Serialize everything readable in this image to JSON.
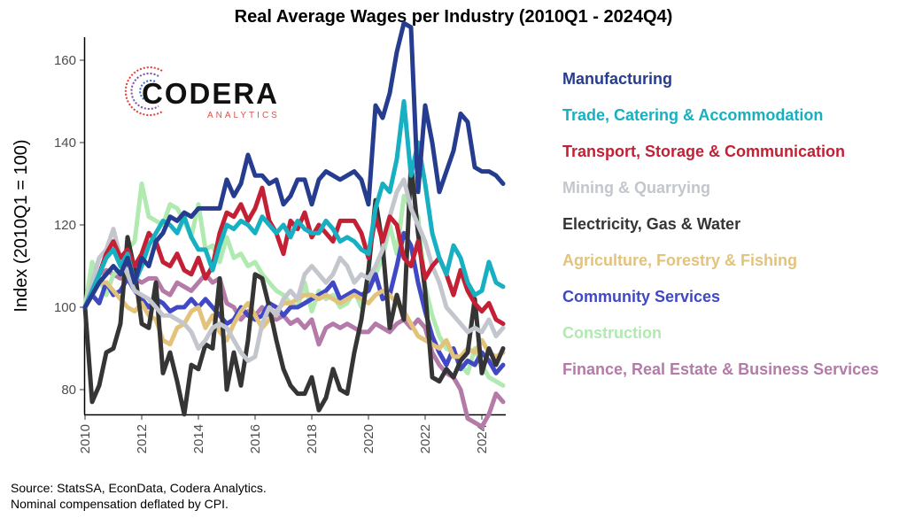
{
  "chart_data": {
    "type": "line",
    "title": "Real Average Wages per Industry (2010Q1 - 2024Q4)",
    "xlabel": "",
    "ylabel": "Index (2010Q1 = 100)",
    "xlim": [
      2010,
      2024.75
    ],
    "ylim": [
      70,
      170
    ],
    "x_ticks": [
      "2010",
      "2012",
      "2014",
      "2016",
      "2018",
      "2020",
      "2022",
      "2024"
    ],
    "y_ticks": [
      "80",
      "100",
      "120",
      "140",
      "160"
    ],
    "grid": false,
    "legend": "right",
    "x": [
      2010,
      2010.25,
      2010.5,
      2010.75,
      2011,
      2011.25,
      2011.5,
      2011.75,
      2012,
      2012.25,
      2012.5,
      2012.75,
      2013,
      2013.25,
      2013.5,
      2013.75,
      2014,
      2014.25,
      2014.5,
      2014.75,
      2015,
      2015.25,
      2015.5,
      2015.75,
      2016,
      2016.25,
      2016.5,
      2016.75,
      2017,
      2017.25,
      2017.5,
      2017.75,
      2018,
      2018.25,
      2018.5,
      2018.75,
      2019,
      2019.25,
      2019.5,
      2019.75,
      2020,
      2020.25,
      2020.5,
      2020.75,
      2021,
      2021.25,
      2021.5,
      2021.75,
      2022,
      2022.25,
      2022.5,
      2022.75,
      2023,
      2023.25,
      2023.5,
      2023.75,
      2024,
      2024.25,
      2024.5,
      2024.75
    ],
    "series": [
      {
        "name": "Manufacturing",
        "color": "#263c8f",
        "values": [
          100,
          103,
          106,
          108,
          110,
          108,
          112,
          106,
          112,
          110,
          116,
          118,
          122,
          121,
          123,
          122,
          124,
          124,
          124,
          124,
          131,
          127,
          130,
          137,
          132,
          132,
          130,
          131,
          125,
          127,
          131,
          131,
          125,
          131,
          133,
          132,
          131,
          132,
          133,
          131,
          125,
          149,
          146,
          152,
          162,
          169,
          168,
          128,
          149,
          140,
          128,
          133,
          138,
          147,
          145,
          134,
          133,
          133,
          132,
          130
        ]
      },
      {
        "name": "Trade, Catering & Accommodation",
        "color": "#17b0c2",
        "values": [
          100,
          104,
          108,
          112,
          114,
          110,
          113,
          106,
          110,
          115,
          118,
          121,
          120,
          118,
          122,
          117,
          114,
          114,
          109,
          115,
          120,
          119,
          121,
          120,
          118,
          122,
          120,
          118,
          120,
          117,
          121,
          119,
          118,
          118,
          121,
          119,
          116,
          117,
          116,
          114,
          113,
          124,
          130,
          128,
          136,
          150,
          132,
          140,
          130,
          118,
          112,
          108,
          115,
          112,
          106,
          103,
          104,
          111,
          106,
          105
        ]
      },
      {
        "name": "Transport, Storage & Communication",
        "color": "#c42035",
        "values": [
          100,
          104,
          108,
          113,
          116,
          112,
          114,
          110,
          113,
          118,
          116,
          111,
          110,
          113,
          109,
          108,
          112,
          107,
          110,
          118,
          123,
          122,
          125,
          121,
          124,
          129,
          121,
          118,
          113,
          121,
          119,
          123,
          117,
          120,
          118,
          116,
          121,
          121,
          121,
          118,
          112,
          122,
          116,
          122,
          120,
          112,
          110,
          116,
          107,
          110,
          112,
          108,
          103,
          109,
          104,
          101,
          99,
          101,
          97,
          96
        ]
      },
      {
        "name": "Mining & Quarrying",
        "color": "#c3c6cd",
        "values": [
          100,
          106,
          112,
          114,
          119,
          112,
          108,
          104,
          103,
          102,
          100,
          98,
          98,
          97,
          96,
          94,
          90,
          92,
          95,
          96,
          95,
          92,
          89,
          87,
          88,
          96,
          100,
          98,
          102,
          104,
          102,
          108,
          110,
          108,
          106,
          108,
          112,
          110,
          106,
          108,
          107,
          110,
          114,
          122,
          128,
          131,
          124,
          120,
          116,
          110,
          106,
          100,
          98,
          96,
          94,
          95,
          94,
          97,
          93,
          95
        ]
      },
      {
        "name": "Electricity, Gas & Water",
        "color": "#353535",
        "values": [
          100,
          77,
          81,
          89,
          90,
          96,
          117,
          109,
          96,
          95,
          106,
          84,
          89,
          82,
          74,
          86,
          85,
          91,
          90,
          107,
          80,
          89,
          81,
          92,
          108,
          107,
          100,
          92,
          85,
          81,
          79,
          79,
          83,
          75,
          78,
          85,
          80,
          79,
          89,
          97,
          109,
          126,
          115,
          95,
          103,
          97,
          135,
          118,
          104,
          83,
          82,
          85,
          83,
          87,
          89,
          102,
          84,
          90,
          86,
          90
        ]
      },
      {
        "name": "Agriculture, Forestry & Fishing",
        "color": "#e3c37c",
        "values": [
          100,
          103,
          106,
          106,
          104,
          102,
          100,
          99,
          101,
          98,
          97,
          92,
          91,
          95,
          96,
          99,
          100,
          95,
          98,
          94,
          92,
          96,
          99,
          101,
          98,
          95,
          97,
          99,
          101,
          101,
          102,
          103,
          103,
          102,
          103,
          102,
          101,
          102,
          103,
          102,
          101,
          103,
          104,
          103,
          101,
          99,
          96,
          93,
          92,
          91,
          90,
          92,
          88,
          88,
          90,
          89,
          92,
          89,
          88,
          89
        ]
      },
      {
        "name": "Community Services",
        "color": "#4048c5",
        "values": [
          100,
          103,
          101,
          106,
          103,
          104,
          107,
          104,
          102,
          100,
          102,
          101,
          99,
          100,
          100,
          102,
          100,
          102,
          100,
          98,
          96,
          97,
          100,
          98,
          97,
          98,
          101,
          100,
          98,
          100,
          100,
          101,
          102,
          103,
          104,
          106,
          102,
          103,
          104,
          103,
          104,
          108,
          102,
          103,
          110,
          118,
          115,
          106,
          99,
          93,
          89,
          86,
          90,
          85,
          87,
          86,
          89,
          87,
          84,
          86
        ]
      },
      {
        "name": "Construction",
        "color": "#b0eab0",
        "values": [
          100,
          111,
          107,
          103,
          108,
          109,
          114,
          116,
          130,
          122,
          121,
          120,
          125,
          124,
          121,
          117,
          125,
          114,
          115,
          111,
          117,
          112,
          113,
          110,
          111,
          108,
          106,
          104,
          103,
          101,
          100,
          106,
          99,
          104,
          102,
          103,
          100,
          101,
          104,
          100,
          106,
          108,
          112,
          120,
          113,
          127,
          124,
          122,
          105,
          98,
          93,
          90,
          89,
          86,
          84,
          90,
          86,
          83,
          82,
          81
        ]
      },
      {
        "name": "Finance, Real Estate & Business Services",
        "color": "#b47aa8",
        "values": [
          100,
          106,
          108,
          109,
          108,
          107,
          108,
          107,
          106,
          107,
          107,
          104,
          103,
          106,
          105,
          104,
          106,
          108,
          106,
          107,
          101,
          100,
          97,
          99,
          98,
          100,
          98,
          97,
          98,
          96,
          97,
          95,
          97,
          91,
          95,
          96,
          95,
          96,
          95,
          94,
          94,
          96,
          95,
          94,
          96,
          97,
          95,
          97,
          95,
          89,
          86,
          84,
          83,
          80,
          73,
          72,
          71,
          74,
          79,
          77
        ]
      }
    ]
  },
  "logo": {
    "name": "CODERA",
    "sub": "ANALYTICS"
  },
  "source": {
    "line1": "Source: StatsSA, EconData, Codera Analytics.",
    "line2": "Nominal compensation deflated by CPI."
  }
}
